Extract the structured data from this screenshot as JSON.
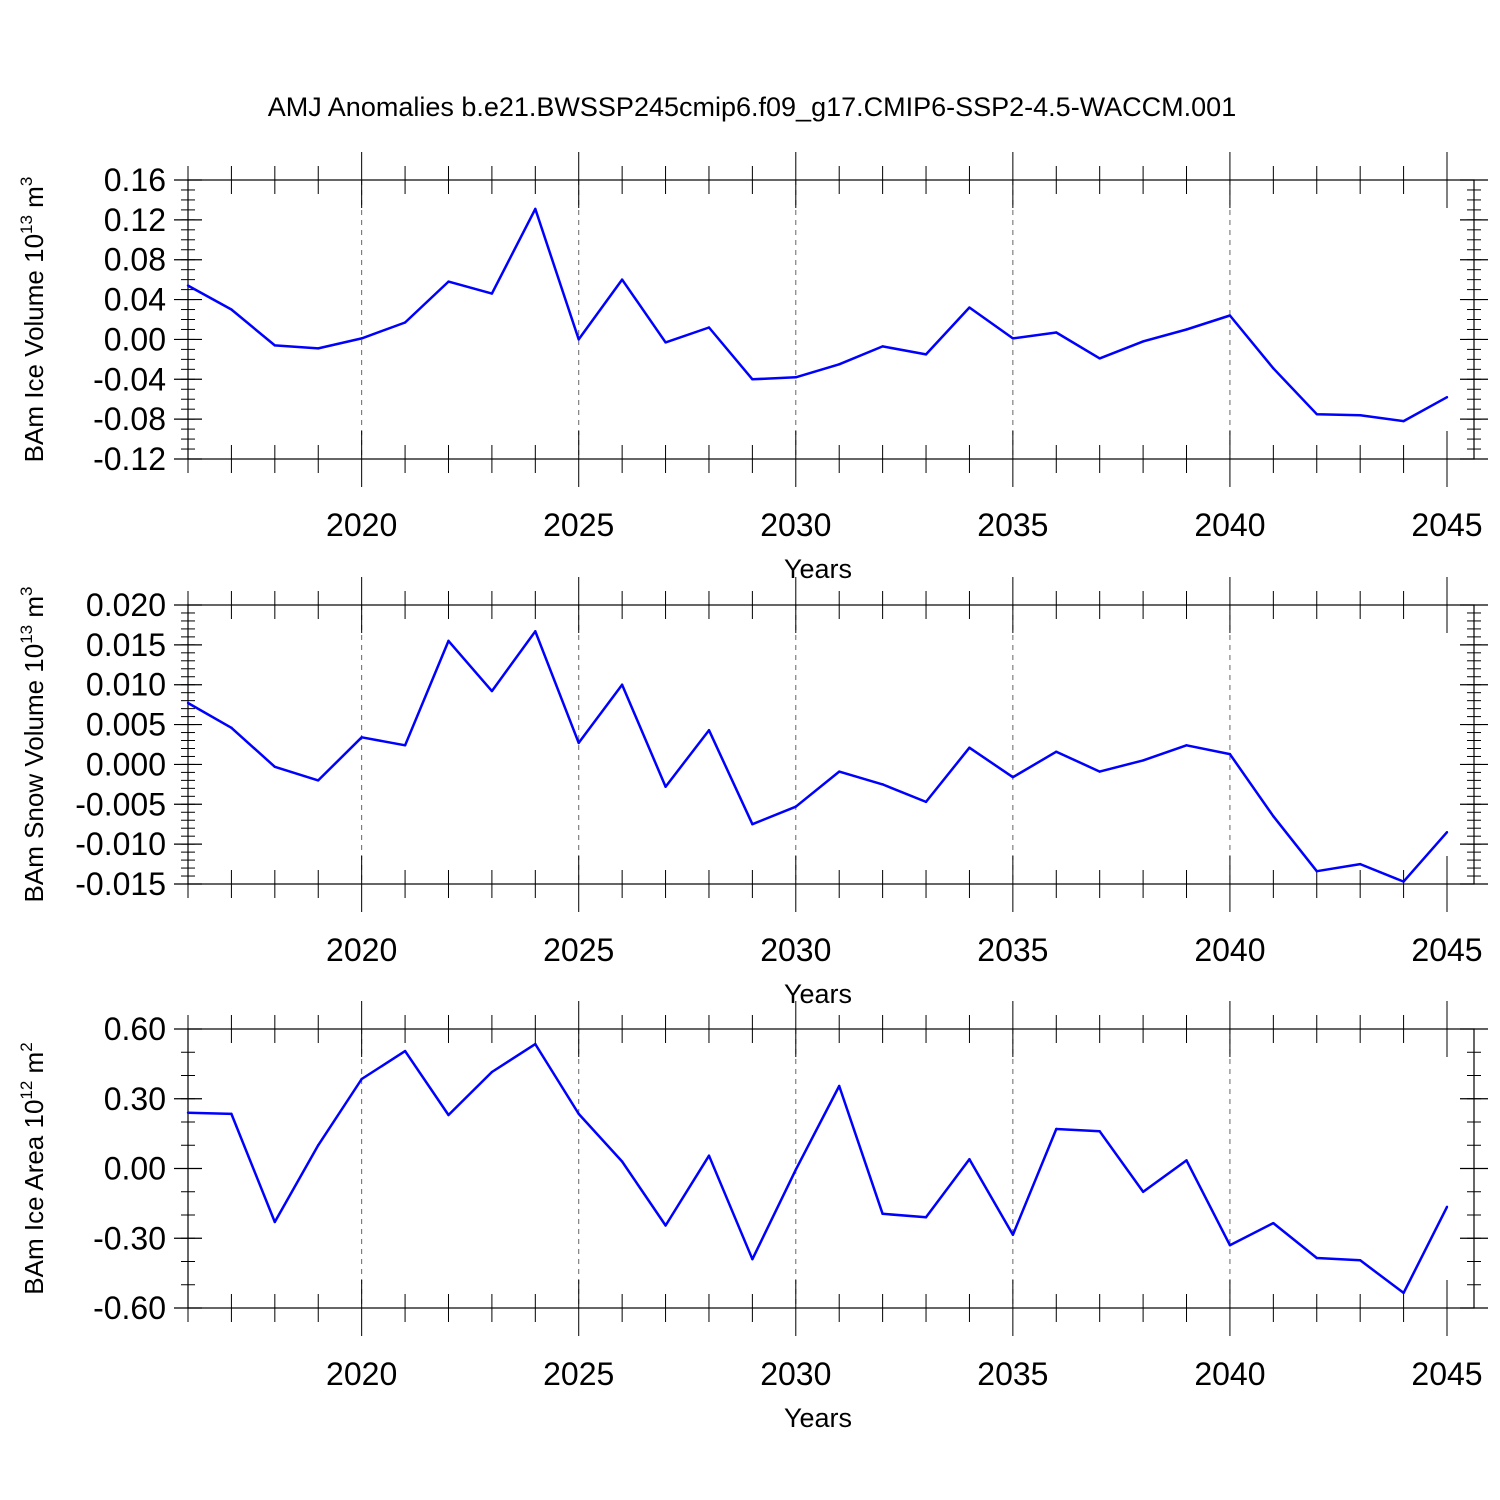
{
  "title": "AMJ Anomalies b.e21.BWSSP245cmip6.f09_g17.CMIP6-SSP2-4.5-WACCM.001",
  "series_color": "#0000ff",
  "chart_data": [
    {
      "type": "line",
      "ylabel": "BAm Ice Volume 10",
      "ylabel_exp": "13",
      "ylabel_unit": " m",
      "ylabel_unit_exp": "3",
      "xlabel": "Years",
      "xlim": [
        2016,
        2045
      ],
      "ylim": [
        -0.12,
        0.16
      ],
      "yticks": [
        -0.12,
        -0.08,
        -0.04,
        0.0,
        0.04,
        0.08,
        0.12,
        0.16
      ],
      "ytick_labels": [
        "-0.12",
        "-0.08",
        "-0.04",
        "0.00",
        "0.04",
        "0.08",
        "0.12",
        "0.16"
      ],
      "yminor_step": 0.01,
      "xticks": [
        2020,
        2025,
        2030,
        2035,
        2040,
        2045
      ],
      "xtick_labels": [
        "2020",
        "2025",
        "2030",
        "2035",
        "2040",
        "2045"
      ],
      "grid": "dashed vertical at major x ticks",
      "x": [
        2016,
        2017,
        2018,
        2019,
        2020,
        2021,
        2022,
        2023,
        2024,
        2025,
        2026,
        2027,
        2028,
        2029,
        2030,
        2031,
        2032,
        2033,
        2034,
        2035,
        2036,
        2037,
        2038,
        2039,
        2040,
        2041,
        2042,
        2043,
        2044,
        2045
      ],
      "y": [
        0.054,
        0.03,
        -0.006,
        -0.009,
        0.001,
        0.017,
        0.058,
        0.046,
        0.131,
        0.0,
        0.06,
        -0.003,
        0.012,
        -0.04,
        -0.038,
        -0.025,
        -0.007,
        -0.015,
        0.032,
        0.001,
        0.007,
        -0.019,
        -0.002,
        0.01,
        0.024,
        -0.029,
        -0.075,
        -0.076,
        -0.082,
        -0.058
      ]
    },
    {
      "type": "line",
      "ylabel": "BAm Snow Volume 10",
      "ylabel_exp": "13",
      "ylabel_unit": " m",
      "ylabel_unit_exp": "3",
      "xlabel": "Years",
      "xlim": [
        2016,
        2045
      ],
      "ylim": [
        -0.015,
        0.02
      ],
      "yticks": [
        -0.015,
        -0.01,
        -0.005,
        0.0,
        0.005,
        0.01,
        0.015,
        0.02
      ],
      "ytick_labels": [
        "-0.015",
        "-0.010",
        "-0.005",
        "0.000",
        "0.005",
        "0.010",
        "0.015",
        "0.020"
      ],
      "yminor_step": 0.001,
      "xticks": [
        2020,
        2025,
        2030,
        2035,
        2040,
        2045
      ],
      "xtick_labels": [
        "2020",
        "2025",
        "2030",
        "2035",
        "2040",
        "2045"
      ],
      "grid": "dashed vertical at major x ticks",
      "x": [
        2016,
        2017,
        2018,
        2019,
        2020,
        2021,
        2022,
        2023,
        2024,
        2025,
        2026,
        2027,
        2028,
        2029,
        2030,
        2031,
        2032,
        2033,
        2034,
        2035,
        2036,
        2037,
        2038,
        2039,
        2040,
        2041,
        2042,
        2043,
        2044,
        2045
      ],
      "y": [
        0.0077,
        0.0046,
        -0.0003,
        -0.002,
        0.0034,
        0.0024,
        0.0155,
        0.0092,
        0.0167,
        0.0027,
        0.01,
        -0.0028,
        0.0043,
        -0.0075,
        -0.0053,
        -0.0009,
        -0.0025,
        -0.0047,
        0.0021,
        -0.0016,
        0.0016,
        -0.0009,
        0.0005,
        0.0024,
        0.0013,
        -0.0065,
        -0.0134,
        -0.0125,
        -0.0147,
        -0.0085
      ]
    },
    {
      "type": "line",
      "ylabel": "BAm Ice Area 10",
      "ylabel_exp": "12",
      "ylabel_unit": " m",
      "ylabel_unit_exp": "2",
      "xlabel": "Years",
      "xlim": [
        2016,
        2045
      ],
      "ylim": [
        -0.6,
        0.6
      ],
      "yticks": [
        -0.6,
        -0.3,
        0.0,
        0.3,
        0.6
      ],
      "ytick_labels": [
        "-0.60",
        "-0.30",
        "0.00",
        "0.30",
        "0.60"
      ],
      "yminor_step": 0.1,
      "xticks": [
        2020,
        2025,
        2030,
        2035,
        2040,
        2045
      ],
      "xtick_labels": [
        "2020",
        "2025",
        "2030",
        "2035",
        "2040",
        "2045"
      ],
      "grid": "dashed vertical at major x ticks",
      "x": [
        2016,
        2017,
        2018,
        2019,
        2020,
        2021,
        2022,
        2023,
        2024,
        2025,
        2026,
        2027,
        2028,
        2029,
        2030,
        2031,
        2032,
        2033,
        2034,
        2035,
        2036,
        2037,
        2038,
        2039,
        2040,
        2041,
        2042,
        2043,
        2044,
        2045
      ],
      "y": [
        0.24,
        0.235,
        -0.23,
        0.1,
        0.385,
        0.505,
        0.23,
        0.415,
        0.535,
        0.235,
        0.03,
        -0.245,
        0.055,
        -0.39,
        -0.005,
        0.355,
        -0.195,
        -0.21,
        0.04,
        -0.285,
        0.17,
        0.16,
        -0.1,
        0.035,
        -0.33,
        -0.235,
        -0.385,
        -0.395,
        -0.535,
        -0.165
      ]
    }
  ]
}
